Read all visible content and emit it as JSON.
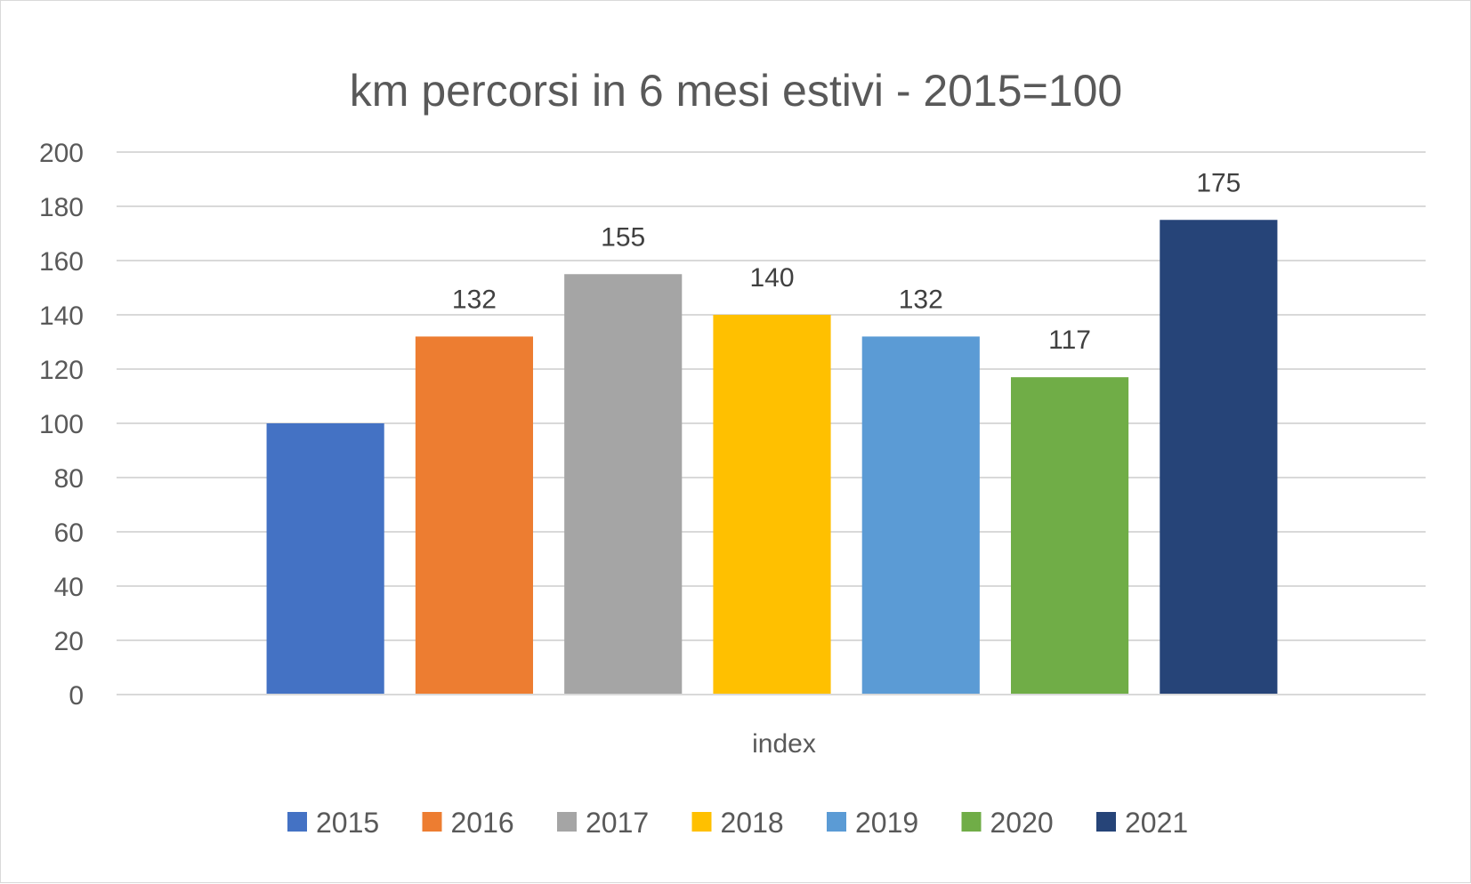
{
  "chart_data": {
    "type": "bar",
    "title": "km percorsi in 6 mesi estivi - 2015=100",
    "xlabel": "index",
    "ylabel": "",
    "categories": [
      "index"
    ],
    "ylim": [
      0,
      200
    ],
    "yticks": [
      "0",
      "20",
      "40",
      "60",
      "80",
      "100",
      "120",
      "140",
      "160",
      "180",
      "200"
    ],
    "grid": true,
    "legend_position": "bottom",
    "series": [
      {
        "name": "2015",
        "values": [
          100
        ],
        "color": "#4472C4",
        "data_label": ""
      },
      {
        "name": "2016",
        "values": [
          132
        ],
        "color": "#ED7D31",
        "data_label": "132"
      },
      {
        "name": "2017",
        "values": [
          155
        ],
        "color": "#A5A5A5",
        "data_label": "155"
      },
      {
        "name": "2018",
        "values": [
          140
        ],
        "color": "#FFC000",
        "data_label": "140"
      },
      {
        "name": "2019",
        "values": [
          132
        ],
        "color": "#5B9BD5",
        "data_label": "132"
      },
      {
        "name": "2020",
        "values": [
          117
        ],
        "color": "#70AD47",
        "data_label": "117"
      },
      {
        "name": "2021",
        "values": [
          175
        ],
        "color": "#264478",
        "data_label": "175"
      }
    ]
  }
}
